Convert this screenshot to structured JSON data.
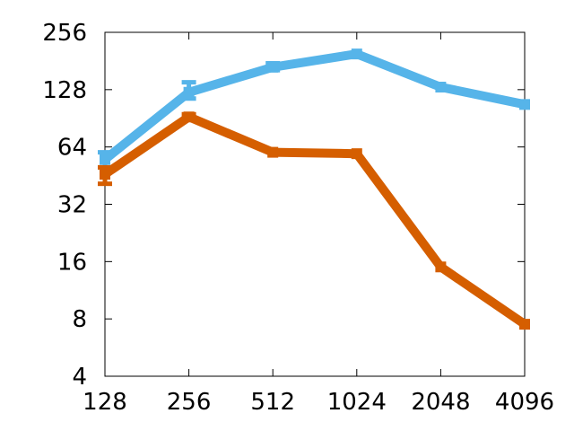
{
  "chart_data": {
    "type": "line",
    "x_scale": "log2",
    "y_scale": "log2",
    "x": [
      128,
      256,
      512,
      1024,
      2048,
      4096
    ],
    "x_tick_labels": [
      "128",
      "256",
      "512",
      "1024",
      "2048",
      "4096"
    ],
    "y_ticks": [
      4,
      8,
      16,
      32,
      64,
      128,
      256
    ],
    "y_tick_labels": [
      "4",
      "8",
      "16",
      "32",
      "64",
      "128",
      "256"
    ],
    "xlim": [
      128,
      4096
    ],
    "ylim": [
      4,
      256
    ],
    "grid": false,
    "legend": "none",
    "series": [
      {
        "color": "#56b4e9",
        "values": [
          55,
          124,
          168,
          197,
          132,
          107
        ],
        "error_low": [
          50,
          115,
          162,
          null,
          null,
          null
        ],
        "error_high": [
          60,
          140,
          176,
          null,
          null,
          null
        ]
      },
      {
        "color": "#d55e00",
        "values": [
          46,
          92,
          60,
          59,
          15,
          7.5
        ],
        "error_low": [
          41,
          89,
          null,
          null,
          null,
          null
        ],
        "error_high": [
          50,
          95,
          null,
          null,
          null,
          null
        ]
      }
    ]
  }
}
